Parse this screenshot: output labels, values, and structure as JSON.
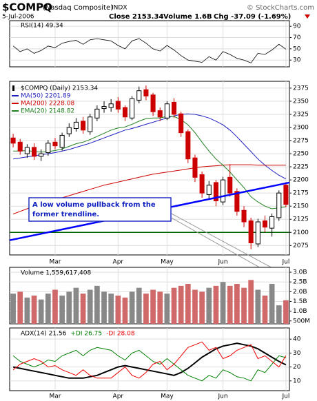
{
  "header": {
    "symbol": "$COMPQ",
    "name": "(Nasdaq Composite)",
    "exchange": "INDX",
    "source": "© StockCharts.com",
    "date": "5-Jul-2006",
    "close": "Close 2153.34",
    "volume": "Volume 1.6B",
    "change": "Chg -37.09 (-1.69%)"
  },
  "chart_data": [
    {
      "type": "line",
      "title": "RSI(14) 49.34",
      "color": "#000000",
      "values": [
        55,
        45,
        50,
        42,
        47,
        55,
        52,
        60,
        63,
        65,
        58,
        66,
        68,
        66,
        64,
        56,
        50,
        64,
        68,
        60,
        50,
        46,
        56,
        48,
        38,
        30,
        28,
        26,
        36,
        30,
        45,
        40,
        33,
        30,
        25,
        42,
        40,
        48,
        58,
        49.34
      ],
      "ylim": [
        18,
        100
      ],
      "yticks": [
        90,
        70,
        50,
        30
      ],
      "grid": true
    },
    {
      "type": "candlestick",
      "title": "$COMPQ (Daily) 2153.34",
      "categories": [
        null,
        null,
        null,
        null,
        null,
        null,
        "Mar",
        null,
        null,
        null,
        null,
        null,
        null,
        null,
        null,
        "Apr",
        null,
        null,
        null,
        null,
        null,
        null,
        "May",
        null,
        null,
        null,
        null,
        null,
        null,
        null,
        "Jun",
        null,
        null,
        null,
        null,
        null,
        null,
        null,
        null,
        "Jul"
      ],
      "open": [
        2280,
        2272,
        2250,
        2262,
        2245,
        2252,
        2272,
        2262,
        2288,
        2298,
        2312,
        2292,
        2318,
        2336,
        2338,
        2350,
        2338,
        2318,
        2352,
        2372,
        2362,
        2332,
        2318,
        2348,
        2326,
        2292,
        2242,
        2210,
        2172,
        2195,
        2158,
        2205,
        2178,
        2142,
        2122,
        2078,
        2122,
        2108,
        2128,
        2190
      ],
      "high": [
        2288,
        2278,
        2268,
        2270,
        2258,
        2276,
        2280,
        2290,
        2308,
        2318,
        2320,
        2326,
        2342,
        2350,
        2354,
        2358,
        2342,
        2360,
        2378,
        2380,
        2366,
        2338,
        2350,
        2356,
        2330,
        2296,
        2248,
        2216,
        2198,
        2200,
        2206,
        2230,
        2184,
        2150,
        2128,
        2126,
        2132,
        2136,
        2180,
        2196
      ],
      "low": [
        2262,
        2248,
        2242,
        2238,
        2236,
        2246,
        2258,
        2256,
        2282,
        2292,
        2288,
        2286,
        2312,
        2328,
        2330,
        2328,
        2312,
        2314,
        2346,
        2352,
        2322,
        2312,
        2314,
        2318,
        2282,
        2232,
        2196,
        2166,
        2164,
        2150,
        2152,
        2168,
        2132,
        2110,
        2068,
        2072,
        2100,
        2092,
        2122,
        2148
      ],
      "close": [
        2270,
        2255,
        2262,
        2245,
        2250,
        2270,
        2265,
        2285,
        2300,
        2310,
        2295,
        2320,
        2335,
        2340,
        2345,
        2335,
        2320,
        2355,
        2370,
        2360,
        2330,
        2320,
        2345,
        2325,
        2290,
        2240,
        2205,
        2175,
        2190,
        2160,
        2200,
        2175,
        2140,
        2120,
        2080,
        2120,
        2110,
        2130,
        2175,
        2153.34
      ],
      "up_color": "#000000",
      "down_color": "#cc0000",
      "series": [
        {
          "name": "MA(50) 2201.89",
          "color": "#2020c0",
          "values": [
            2240,
            2242,
            2244,
            2246,
            2248,
            2250,
            2252,
            2255,
            2258,
            2262,
            2266,
            2270,
            2275,
            2280,
            2285,
            2290,
            2295,
            2298,
            2302,
            2306,
            2310,
            2314,
            2318,
            2322,
            2325,
            2326,
            2325,
            2322,
            2318,
            2312,
            2305,
            2295,
            2282,
            2268,
            2254,
            2240,
            2228,
            2218,
            2209,
            2201.89
          ]
        },
        {
          "name": "MA(200) 2228.08",
          "color": "#cc0000",
          "values": [
            2135,
            2140,
            2145,
            2150,
            2154,
            2158,
            2162,
            2166,
            2170,
            2174,
            2178,
            2182,
            2186,
            2190,
            2193,
            2196,
            2199,
            2202,
            2205,
            2208,
            2211,
            2213,
            2215,
            2217,
            2219,
            2221,
            2223,
            2225,
            2226,
            2227,
            2228,
            2229,
            2229,
            2229,
            2229,
            2228,
            2228,
            2228,
            2228,
            2228.08
          ]
        },
        {
          "name": "EMA(20) 2148.82",
          "color": "#208020",
          "values": [
            2255,
            2255,
            2256,
            2254,
            2253,
            2254,
            2256,
            2259,
            2264,
            2269,
            2272,
            2277,
            2283,
            2289,
            2295,
            2299,
            2301,
            2306,
            2312,
            2317,
            2318,
            2318,
            2321,
            2321,
            2315,
            2305,
            2290,
            2272,
            2255,
            2240,
            2228,
            2215,
            2200,
            2185,
            2168,
            2158,
            2150,
            2145,
            2147,
            2148.82
          ]
        }
      ],
      "trendline": {
        "values": [
          2085,
          2195
        ],
        "color": "#0000ff"
      },
      "hline": {
        "value": 2100,
        "color": "#006400"
      },
      "annotation": {
        "lines": [
          "A low volume pullback from the",
          "former trendline."
        ]
      },
      "ylim": [
        2057,
        2388
      ],
      "yticks": [
        2375,
        2350,
        2325,
        2300,
        2275,
        2250,
        2225,
        2200,
        2175,
        2150,
        2125,
        2100,
        2075
      ],
      "grid": true
    },
    {
      "type": "bar",
      "title": "Volume 1,559,617,408",
      "values": [
        1900000000,
        2000000000,
        1700000000,
        1800000000,
        1600000000,
        1900000000,
        2100000000,
        1800000000,
        2000000000,
        2200000000,
        1900000000,
        2100000000,
        2300000000,
        2000000000,
        1900000000,
        1800000000,
        1700000000,
        2000000000,
        2200000000,
        1900000000,
        2100000000,
        2000000000,
        1900000000,
        2200000000,
        2300000000,
        2400000000,
        2100000000,
        2000000000,
        2200000000,
        2300000000,
        2500000000,
        2300000000,
        2400000000,
        2200000000,
        2600000000,
        2100000000,
        1800000000,
        2400000000,
        1300000000,
        1559617408
      ],
      "up_color": "#888888",
      "down_color": "#d06a6a",
      "ylim": [
        350000000,
        3250000000
      ],
      "yticks": [
        {
          "value": 3000000000,
          "label": "3.0B"
        },
        {
          "value": 2500000000,
          "label": "2.5B"
        },
        {
          "value": 2000000000,
          "label": "2.0B"
        },
        {
          "value": 1500000000,
          "label": "1.5B"
        },
        {
          "value": 1000000000,
          "label": "1.0B"
        },
        {
          "value": 500000000,
          "label": "500M"
        }
      ],
      "grid": true
    },
    {
      "type": "line",
      "series": [
        {
          "name": "ADX(14) 21.56",
          "color": "#000000",
          "values": [
            20,
            19,
            18,
            17,
            16,
            15,
            14,
            13,
            12,
            12,
            12,
            13,
            14,
            16,
            18,
            20,
            21,
            20,
            19,
            18,
            17,
            16,
            15,
            14,
            16,
            19,
            23,
            27,
            30,
            33,
            35,
            36,
            37,
            36,
            35,
            33,
            30,
            27,
            24,
            21.56
          ]
        },
        {
          "name": "+DI 26.75",
          "color": "#008000",
          "values": [
            28,
            24,
            22,
            20,
            22,
            25,
            24,
            28,
            30,
            32,
            28,
            32,
            34,
            33,
            32,
            28,
            25,
            30,
            32,
            28,
            24,
            22,
            26,
            22,
            18,
            14,
            12,
            10,
            14,
            12,
            18,
            16,
            13,
            12,
            10,
            18,
            16,
            22,
            28,
            26.75
          ]
        },
        {
          "name": "-DI 28.08",
          "color": "#ee0000",
          "values": [
            18,
            22,
            24,
            26,
            24,
            20,
            21,
            18,
            16,
            14,
            18,
            14,
            12,
            12,
            12,
            16,
            20,
            14,
            12,
            16,
            22,
            24,
            18,
            22,
            28,
            34,
            36,
            38,
            32,
            34,
            26,
            28,
            32,
            34,
            36,
            26,
            28,
            24,
            20,
            28.08
          ]
        }
      ],
      "ylim": [
        3,
        48
      ],
      "yticks": [
        40,
        30,
        20,
        10
      ],
      "grid": true
    }
  ]
}
